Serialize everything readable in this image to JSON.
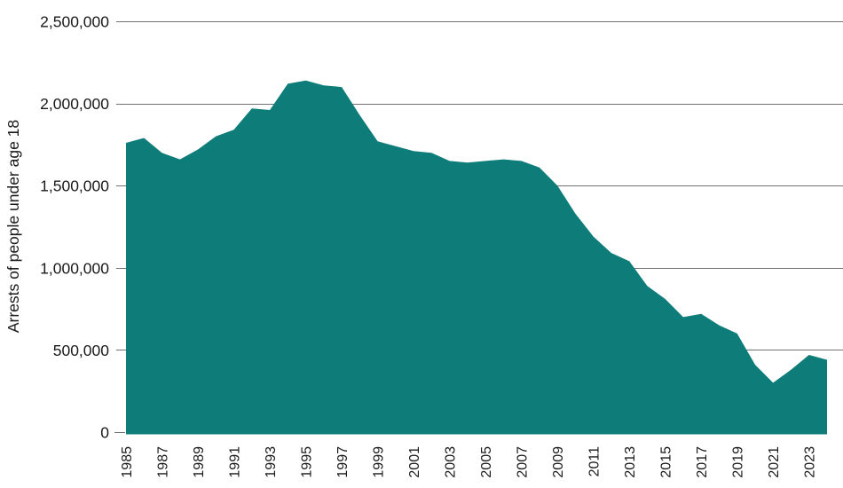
{
  "chart_data": {
    "type": "area",
    "title": "",
    "ylabel": "Arrests of people under age 18",
    "xlabel": "",
    "series_name": "Arrests of people under age 18",
    "x": [
      1985,
      1986,
      1987,
      1988,
      1989,
      1990,
      1991,
      1992,
      1993,
      1994,
      1995,
      1996,
      1997,
      1998,
      1999,
      2000,
      2001,
      2002,
      2003,
      2004,
      2005,
      2006,
      2007,
      2008,
      2009,
      2010,
      2011,
      2012,
      2013,
      2014,
      2015,
      2016,
      2017,
      2018,
      2019,
      2020,
      2021,
      2022,
      2023,
      2024
    ],
    "values": [
      1760000,
      1790000,
      1700000,
      1660000,
      1720000,
      1800000,
      1840000,
      1970000,
      1960000,
      2120000,
      2140000,
      2110000,
      2100000,
      1930000,
      1770000,
      1740000,
      1710000,
      1700000,
      1650000,
      1640000,
      1650000,
      1660000,
      1650000,
      1610000,
      1500000,
      1330000,
      1190000,
      1090000,
      1040000,
      890000,
      810000,
      700000,
      720000,
      650000,
      600000,
      410000,
      300000,
      380000,
      470000,
      440000
    ],
    "ylim": [
      0,
      2500000
    ],
    "y_ticks": [
      {
        "value": 0,
        "label": "0"
      },
      {
        "value": 500000,
        "label": "500,000"
      },
      {
        "value": 1000000,
        "label": "1,000,000"
      },
      {
        "value": 1500000,
        "label": "1,500,000"
      },
      {
        "value": 2000000,
        "label": "2,000,000"
      },
      {
        "value": 2500000,
        "label": "2,500,000"
      }
    ],
    "x_tick_labels": [
      "1985",
      "1987",
      "1989",
      "1991",
      "1993",
      "1995",
      "1997",
      "1999",
      "2001",
      "2003",
      "2005",
      "2007",
      "2009",
      "2011",
      "2013",
      "2015",
      "2017",
      "2019",
      "2021",
      "2023"
    ],
    "grid": "horizontal",
    "legend": "none",
    "area_color": "#0E7C78",
    "gridline_color": "#707070",
    "text_color": "#1A1A1A"
  }
}
